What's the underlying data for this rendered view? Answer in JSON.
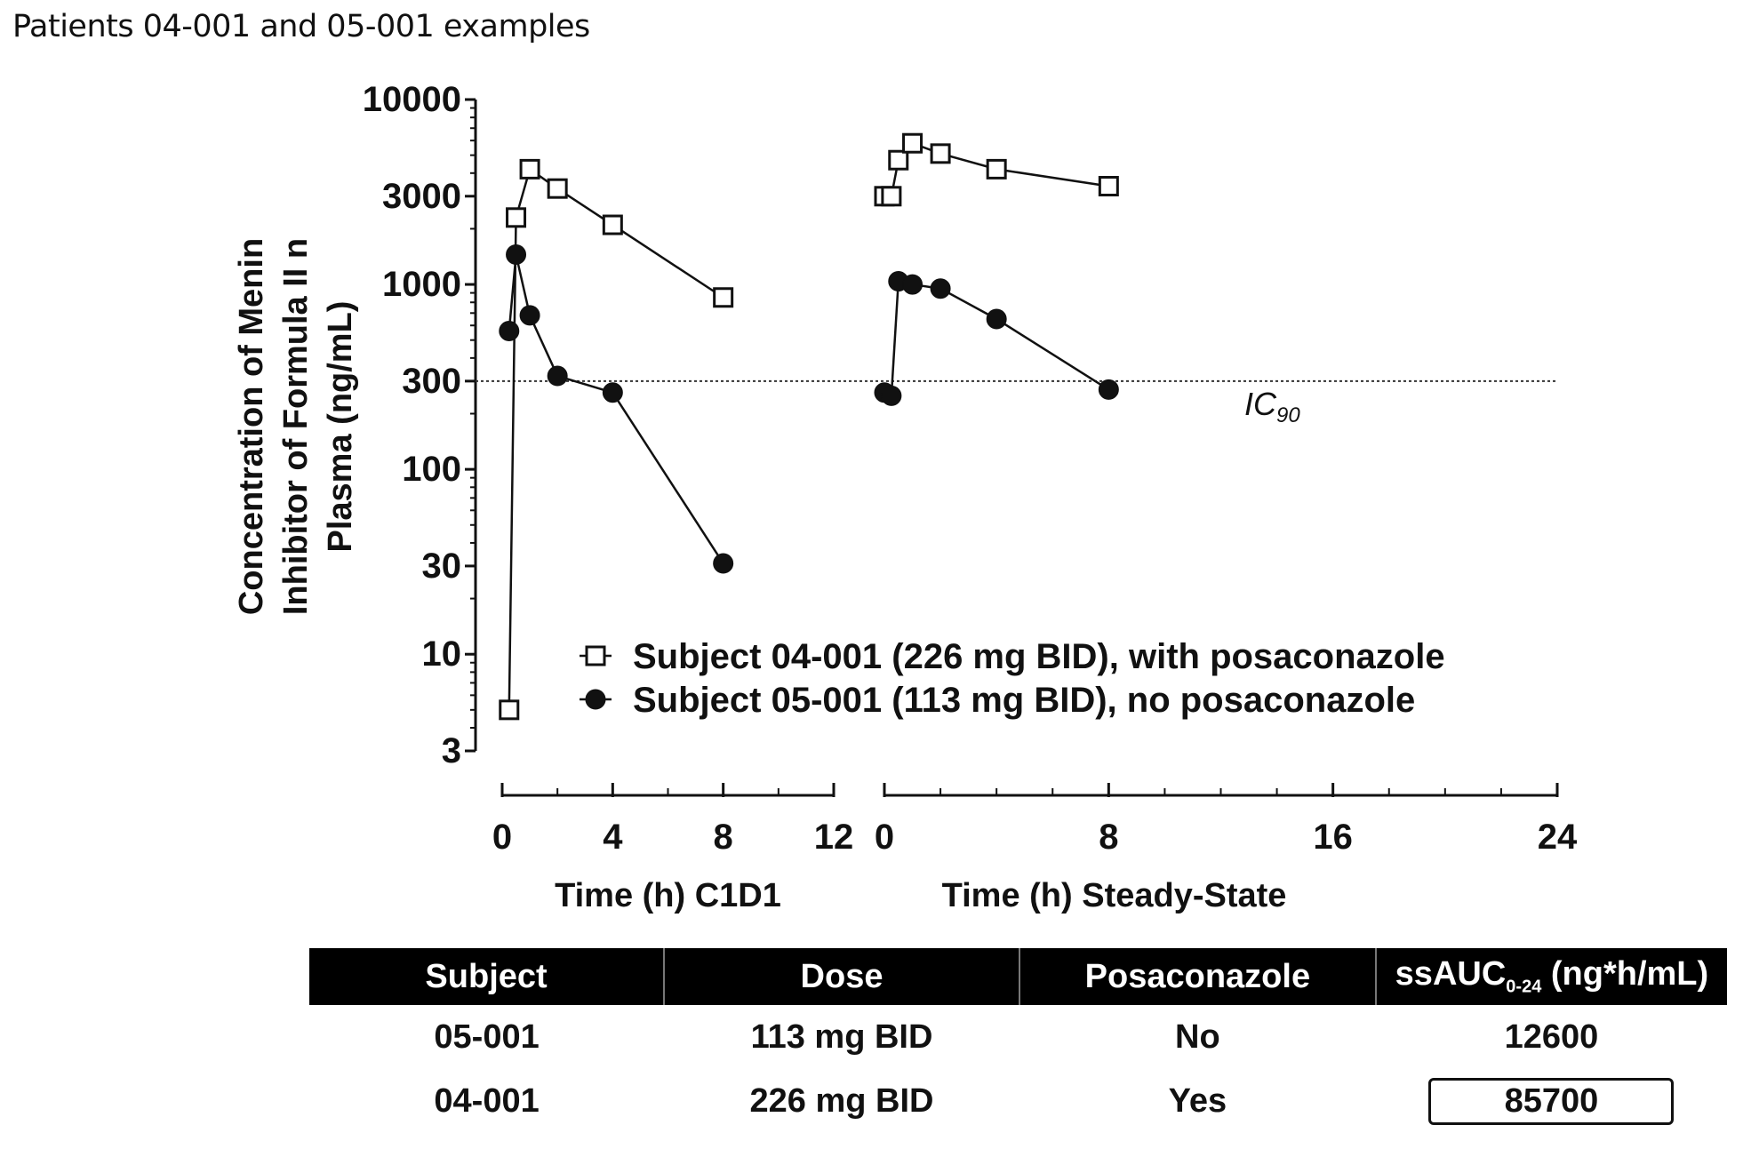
{
  "page_title": "Patients 04-001 and 05-001 examples",
  "chart_data": {
    "type": "scatter",
    "yscale": "log",
    "ylim": [
      3,
      10000
    ],
    "yticks": [
      3,
      10,
      30,
      100,
      300,
      1000,
      3000,
      10000
    ],
    "ylabel_lines": [
      "Concentration of Menin",
      "Inhibitor of Formula II n",
      "Plasma (ng/mL)"
    ],
    "panels": [
      {
        "xlabel": "Time (h) C1D1",
        "xlim": [
          0,
          12
        ],
        "xticks": [
          0,
          4,
          8,
          12
        ]
      },
      {
        "xlabel": "Time (h) Steady-State",
        "xlim": [
          0,
          24
        ],
        "xticks": [
          0,
          8,
          16,
          24
        ]
      }
    ],
    "reference_line": {
      "y": 300,
      "label": "IC",
      "label_sub": "90"
    },
    "legend_position": "lower-center",
    "series": [
      {
        "name": "Subject 04-001 (226 mg BID), with posaconazole",
        "marker": "open-square",
        "color": "#111111",
        "c1d1": {
          "x": [
            0.25,
            0.5,
            1,
            2,
            4,
            8
          ],
          "y": [
            5,
            2300,
            4200,
            3300,
            2100,
            850
          ]
        },
        "steady_state": {
          "x": [
            0,
            0.25,
            0.5,
            1,
            2,
            4,
            8
          ],
          "y": [
            3000,
            3000,
            4700,
            5800,
            5100,
            4200,
            3400
          ]
        }
      },
      {
        "name": "Subject 05-001 (113 mg BID), no posaconazole",
        "marker": "filled-circle",
        "color": "#111111",
        "c1d1": {
          "x": [
            0.25,
            0.5,
            1,
            2,
            4,
            8
          ],
          "y": [
            560,
            1450,
            680,
            320,
            260,
            31
          ]
        },
        "steady_state": {
          "x": [
            0,
            0.25,
            0.5,
            1,
            2,
            4,
            8
          ],
          "y": [
            260,
            250,
            1040,
            1000,
            950,
            650,
            270
          ]
        }
      }
    ]
  },
  "table": {
    "headers": [
      "Subject",
      "Dose",
      "Posaconazole",
      "ssAUC",
      "0-24",
      " (ng*h/mL)"
    ],
    "rows": [
      [
        "05-001",
        "113 mg BID",
        "No",
        "12600"
      ],
      [
        "04-001",
        "226 mg BID",
        "Yes",
        "85700"
      ]
    ]
  }
}
